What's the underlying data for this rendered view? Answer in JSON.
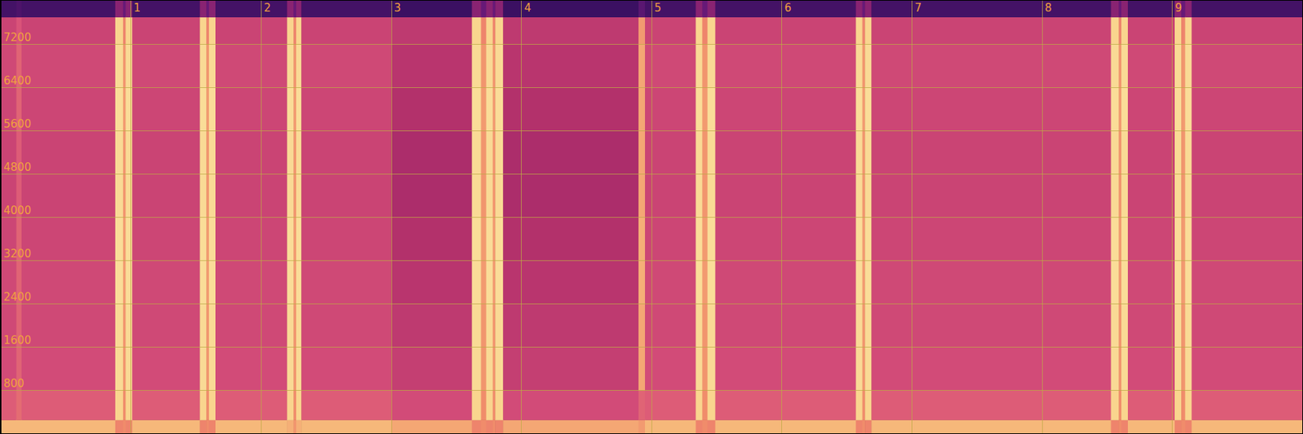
{
  "chart_data": {
    "type": "heatmap",
    "xlim": [
      0,
      10
    ],
    "xticks": [
      1,
      2,
      3,
      4,
      5,
      6,
      7,
      8,
      9
    ],
    "ylim": [
      0,
      8000
    ],
    "yticks": [
      800,
      1600,
      2400,
      3200,
      4000,
      4800,
      5600,
      6400,
      7200
    ],
    "grid": true,
    "zlim": [
      0,
      100
    ],
    "time_edges": [
      0,
      0.12,
      0.16,
      0.88,
      0.94,
      0.96,
      1.01,
      1.53,
      1.58,
      1.6,
      1.65,
      2.2,
      2.25,
      2.27,
      2.31,
      3.0,
      3.62,
      3.69,
      3.73,
      3.78,
      3.8,
      3.86,
      4.9,
      4.95,
      5.34,
      5.39,
      5.43,
      5.49,
      6.57,
      6.62,
      6.64,
      6.69,
      8.53,
      8.59,
      8.61,
      8.66,
      9.02,
      9.07,
      9.1,
      9.15,
      10
    ],
    "freq_edges": [
      0,
      250,
      800,
      1600,
      2400,
      3200,
      4000,
      4800,
      5600,
      6400,
      7200,
      7700,
      8000
    ],
    "cells": [
      [
        82,
        60,
        55,
        54,
        54,
        53,
        52,
        52,
        53,
        54,
        52,
        20
      ],
      [
        82,
        64,
        62,
        62,
        62,
        62,
        60,
        60,
        62,
        62,
        58,
        22
      ],
      [
        82,
        60,
        55,
        54,
        54,
        53,
        52,
        52,
        53,
        54,
        52,
        20
      ],
      [
        70,
        90,
        92,
        92,
        93,
        93,
        92,
        92,
        93,
        92,
        90,
        35
      ],
      [
        72,
        72,
        74,
        74,
        75,
        75,
        74,
        74,
        75,
        74,
        70,
        28
      ],
      [
        70,
        90,
        92,
        92,
        93,
        93,
        92,
        92,
        93,
        92,
        90,
        35
      ],
      [
        82,
        60,
        55,
        54,
        54,
        53,
        52,
        52,
        53,
        54,
        52,
        20
      ],
      [
        70,
        90,
        92,
        92,
        93,
        93,
        92,
        92,
        93,
        92,
        90,
        35
      ],
      [
        72,
        72,
        74,
        74,
        75,
        75,
        74,
        74,
        75,
        74,
        70,
        28
      ],
      [
        70,
        90,
        92,
        92,
        93,
        93,
        92,
        92,
        93,
        92,
        90,
        35
      ],
      [
        82,
        60,
        55,
        54,
        54,
        53,
        52,
        52,
        53,
        54,
        52,
        20
      ],
      [
        80,
        90,
        92,
        92,
        93,
        93,
        92,
        92,
        93,
        92,
        90,
        35
      ],
      [
        74,
        72,
        74,
        74,
        75,
        75,
        74,
        74,
        75,
        74,
        70,
        28
      ],
      [
        80,
        90,
        92,
        92,
        93,
        93,
        92,
        92,
        93,
        92,
        90,
        35
      ],
      [
        82,
        60,
        55,
        54,
        54,
        53,
        52,
        52,
        53,
        54,
        52,
        20
      ],
      [
        78,
        55,
        50,
        48,
        46,
        44,
        42,
        42,
        44,
        46,
        48,
        18
      ],
      [
        70,
        90,
        92,
        92,
        93,
        93,
        92,
        92,
        93,
        92,
        90,
        35
      ],
      [
        72,
        72,
        74,
        74,
        75,
        75,
        74,
        74,
        75,
        74,
        70,
        28
      ],
      [
        70,
        90,
        92,
        92,
        93,
        93,
        92,
        92,
        93,
        92,
        90,
        35
      ],
      [
        72,
        72,
        74,
        74,
        75,
        75,
        74,
        74,
        75,
        74,
        70,
        28
      ],
      [
        70,
        90,
        92,
        92,
        93,
        93,
        92,
        92,
        93,
        92,
        90,
        35
      ],
      [
        78,
        55,
        50,
        48,
        46,
        44,
        42,
        42,
        44,
        46,
        48,
        18
      ],
      [
        75,
        62,
        78,
        78,
        80,
        80,
        78,
        78,
        78,
        78,
        75,
        25
      ],
      [
        82,
        60,
        55,
        54,
        54,
        53,
        52,
        52,
        53,
        54,
        52,
        20
      ],
      [
        70,
        90,
        92,
        92,
        93,
        93,
        92,
        92,
        93,
        92,
        90,
        35
      ],
      [
        72,
        72,
        74,
        74,
        75,
        75,
        74,
        74,
        75,
        74,
        70,
        28
      ],
      [
        70,
        90,
        92,
        92,
        93,
        93,
        92,
        92,
        93,
        92,
        90,
        35
      ],
      [
        82,
        60,
        55,
        54,
        54,
        53,
        52,
        52,
        53,
        54,
        52,
        20
      ],
      [
        70,
        90,
        92,
        92,
        93,
        93,
        92,
        92,
        93,
        92,
        90,
        35
      ],
      [
        72,
        72,
        74,
        74,
        75,
        75,
        74,
        74,
        75,
        74,
        70,
        28
      ],
      [
        70,
        90,
        92,
        92,
        93,
        93,
        92,
        92,
        93,
        92,
        90,
        35
      ],
      [
        82,
        60,
        55,
        54,
        54,
        53,
        52,
        52,
        53,
        54,
        52,
        20
      ],
      [
        70,
        90,
        92,
        92,
        93,
        93,
        92,
        92,
        93,
        92,
        90,
        35
      ],
      [
        72,
        72,
        74,
        74,
        75,
        75,
        74,
        74,
        75,
        74,
        70,
        28
      ],
      [
        70,
        90,
        92,
        92,
        93,
        93,
        92,
        92,
        93,
        92,
        90,
        35
      ],
      [
        82,
        60,
        55,
        54,
        54,
        53,
        52,
        52,
        53,
        54,
        52,
        20
      ],
      [
        70,
        90,
        92,
        92,
        93,
        93,
        92,
        92,
        93,
        92,
        90,
        35
      ],
      [
        72,
        72,
        74,
        74,
        75,
        75,
        74,
        74,
        75,
        74,
        70,
        28
      ],
      [
        70,
        90,
        92,
        92,
        93,
        93,
        92,
        92,
        93,
        92,
        90,
        35
      ],
      [
        82,
        60,
        55,
        54,
        54,
        53,
        52,
        52,
        53,
        54,
        52,
        20
      ]
    ]
  }
}
